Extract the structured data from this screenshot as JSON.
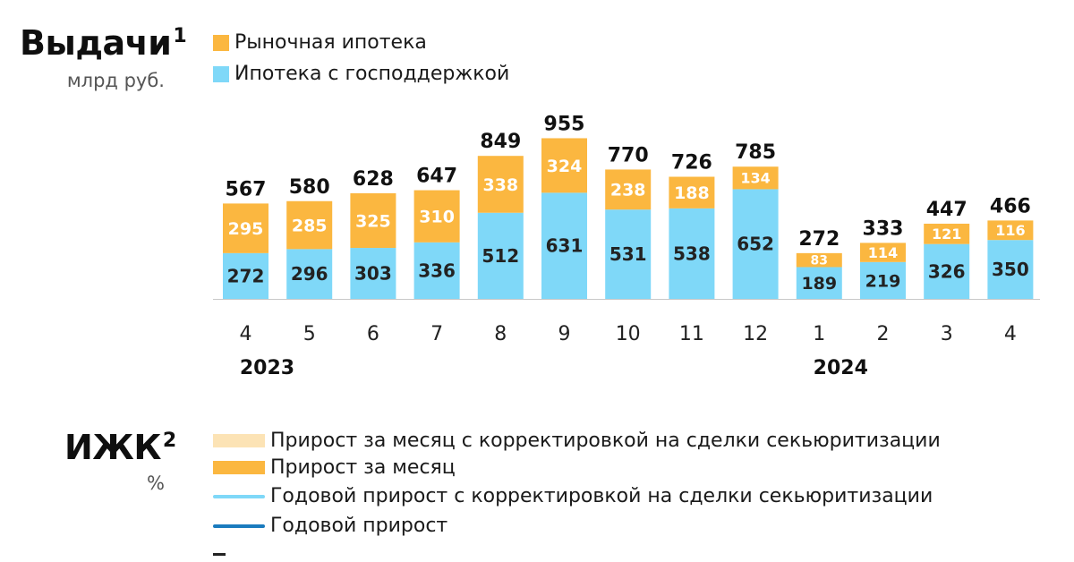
{
  "section1": {
    "title": "Выдачи",
    "title_sup": "1",
    "unit": "млрд руб.",
    "legend": [
      {
        "label": "Рыночная ипотека",
        "color": "#FBB740"
      },
      {
        "label": "Ипотека с господдержкой",
        "color": "#7FD8F8"
      }
    ]
  },
  "chart_data": {
    "type": "bar",
    "stacked": true,
    "categories": [
      "4",
      "5",
      "6",
      "7",
      "8",
      "9",
      "10",
      "11",
      "12",
      "1",
      "2",
      "3",
      "4"
    ],
    "year_labels": [
      {
        "label": "2023",
        "at_index": 0
      },
      {
        "label": "2024",
        "at_index": 9
      }
    ],
    "series": [
      {
        "name": "Ипотека с господдержкой",
        "color": "#7FD8F8",
        "values": [
          272,
          296,
          303,
          336,
          512,
          631,
          531,
          538,
          652,
          189,
          219,
          326,
          350
        ]
      },
      {
        "name": "Рыночная ипотека",
        "color": "#FBB740",
        "values": [
          295,
          285,
          325,
          310,
          338,
          324,
          238,
          188,
          134,
          83,
          114,
          121,
          116
        ]
      }
    ],
    "totals": [
      567,
      580,
      628,
      647,
      849,
      955,
      770,
      726,
      785,
      272,
      333,
      447,
      466
    ],
    "title": "Выдачи",
    "ylabel": "млрд руб.",
    "ylim": [
      0,
      1000
    ],
    "grid": false
  },
  "section2": {
    "title": "ИЖК",
    "title_sup": "2",
    "unit": "%",
    "legend": [
      {
        "label": "Прирост за месяц с корректировкой на сделки секьюритизации",
        "color": "#FCE3B5",
        "kind": "bar"
      },
      {
        "label": "Прирост за месяц",
        "color": "#FBB740",
        "kind": "bar"
      },
      {
        "label": "Годовой прирост с корректировкой на сделки секьюритизации",
        "color": "#7FD8F8",
        "kind": "line"
      },
      {
        "label": "Годовой прирост",
        "color": "#1A7BBE",
        "kind": "line"
      }
    ]
  }
}
